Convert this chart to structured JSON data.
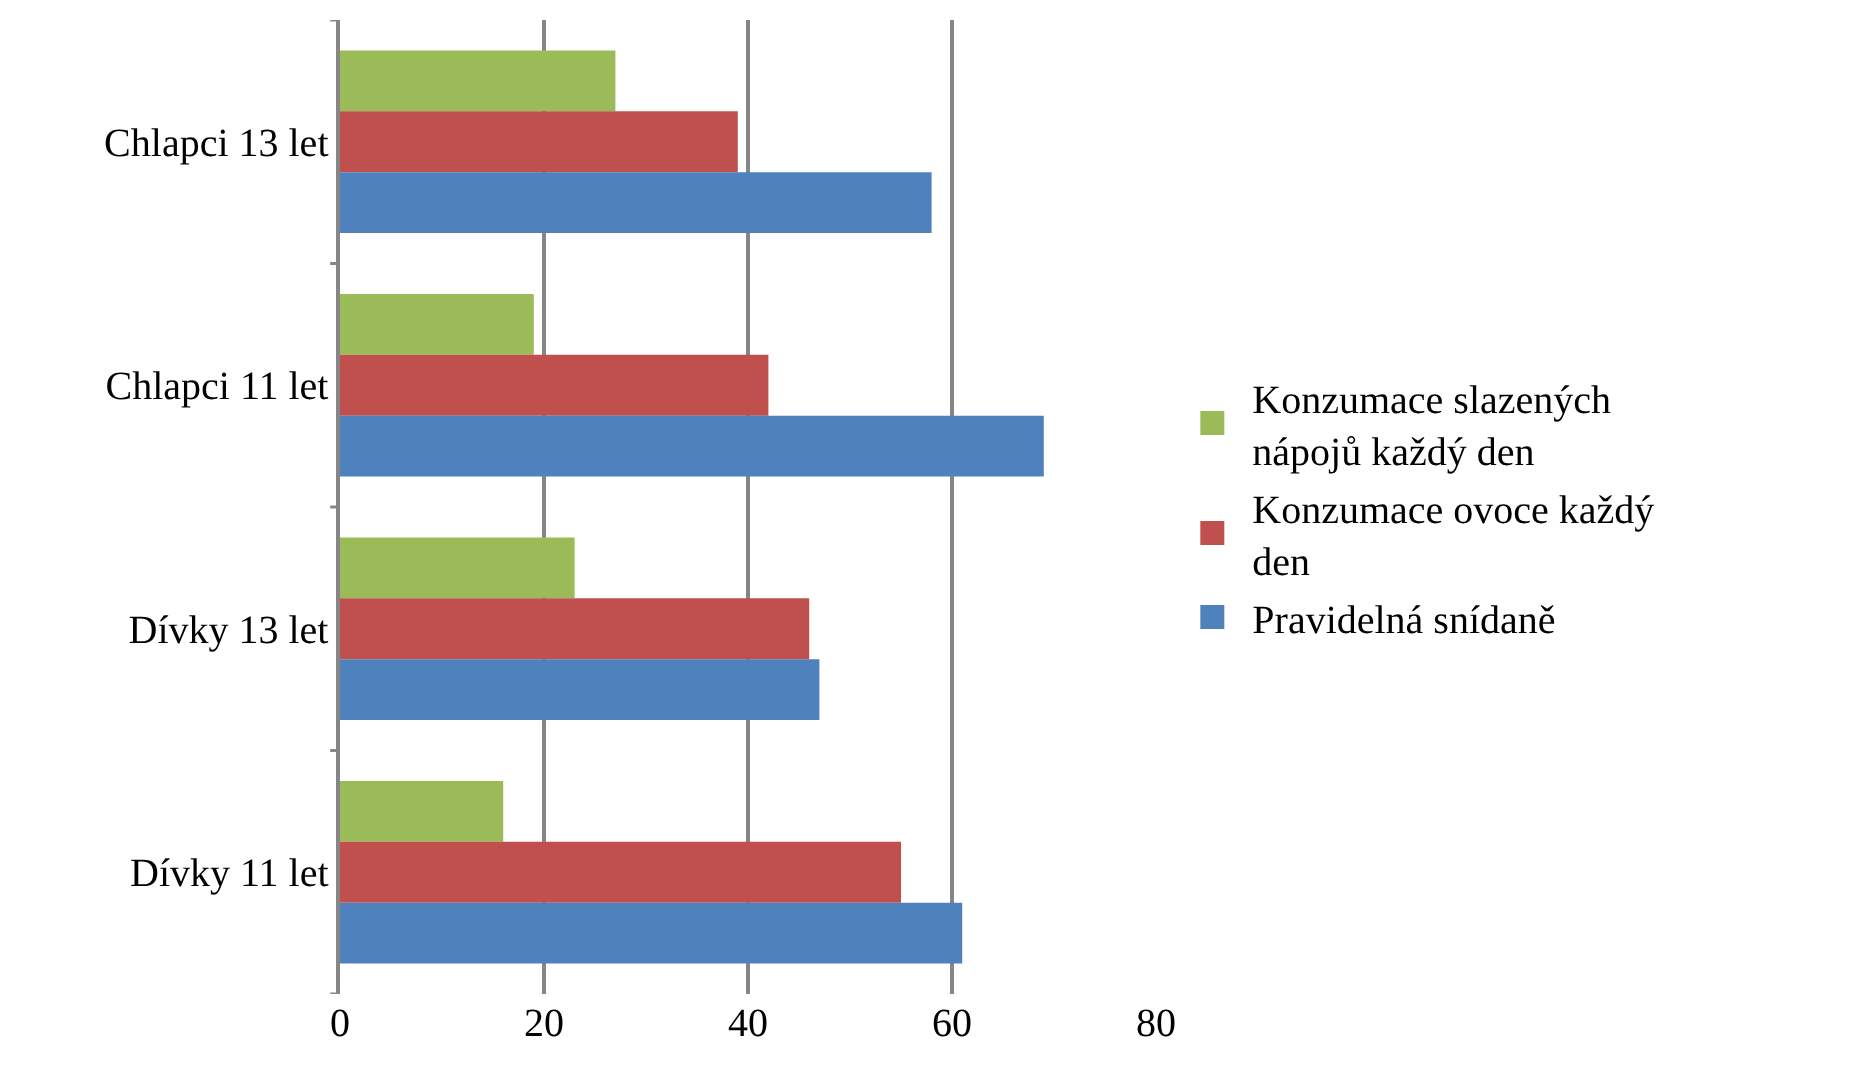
{
  "chart_data": {
    "type": "bar",
    "orientation": "horizontal",
    "categories": [
      "Chlapci 13 let",
      "Chlapci 11 let",
      "Dívky 13 let",
      "Dívky 11 let"
    ],
    "series": [
      {
        "name": "Konzumace slazených nápojů každý den",
        "color": "#9bbb59",
        "values": [
          27,
          19,
          23,
          16
        ]
      },
      {
        "name": "Konzumace ovoce každý den",
        "color": "#c0504d",
        "values": [
          39,
          42,
          46,
          55
        ]
      },
      {
        "name": "Pravidelná snídaně",
        "color": "#4f81bd",
        "values": [
          58,
          69,
          47,
          61
        ]
      }
    ],
    "xlim": [
      0,
      80
    ],
    "xticks": [
      0,
      20,
      40,
      60,
      80
    ],
    "grid": "x",
    "legend": "right"
  }
}
